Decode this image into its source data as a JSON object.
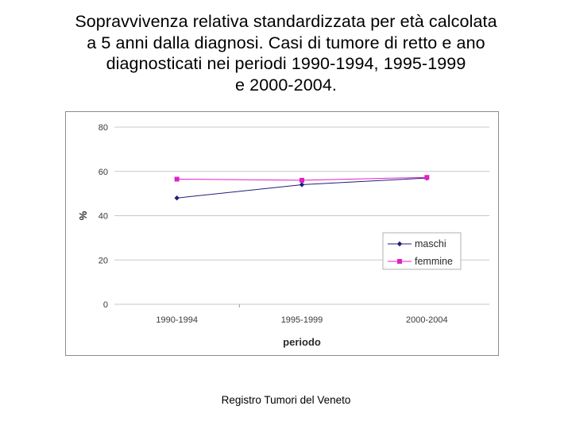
{
  "slide": {
    "title_lines": [
      "Sopravvivenza relativa standardizzata per età calcolata",
      "a 5 anni dalla diagnosi. Casi di tumore di retto e ano",
      "diagnosticati nei periodi 1990-1994, 1995-1999",
      "e 2000-2004."
    ],
    "footer": "Registro Tumori del Veneto"
  },
  "chart_data": {
    "type": "line",
    "categories": [
      "1990-1994",
      "1995-1999",
      "2000-2004"
    ],
    "series": [
      {
        "name": "maschi",
        "values": [
          48,
          54,
          57
        ],
        "color": "#1f1f7a",
        "marker": "diamond"
      },
      {
        "name": "femmine",
        "values": [
          56.5,
          56,
          57.3
        ],
        "color": "#e020c8",
        "marker": "square"
      }
    ],
    "xlabel": "periodo",
    "ylabel": "%",
    "ylim": [
      0,
      80
    ],
    "yticks": [
      0,
      20,
      40,
      60,
      80
    ],
    "grid": true,
    "legend_position": "right"
  }
}
